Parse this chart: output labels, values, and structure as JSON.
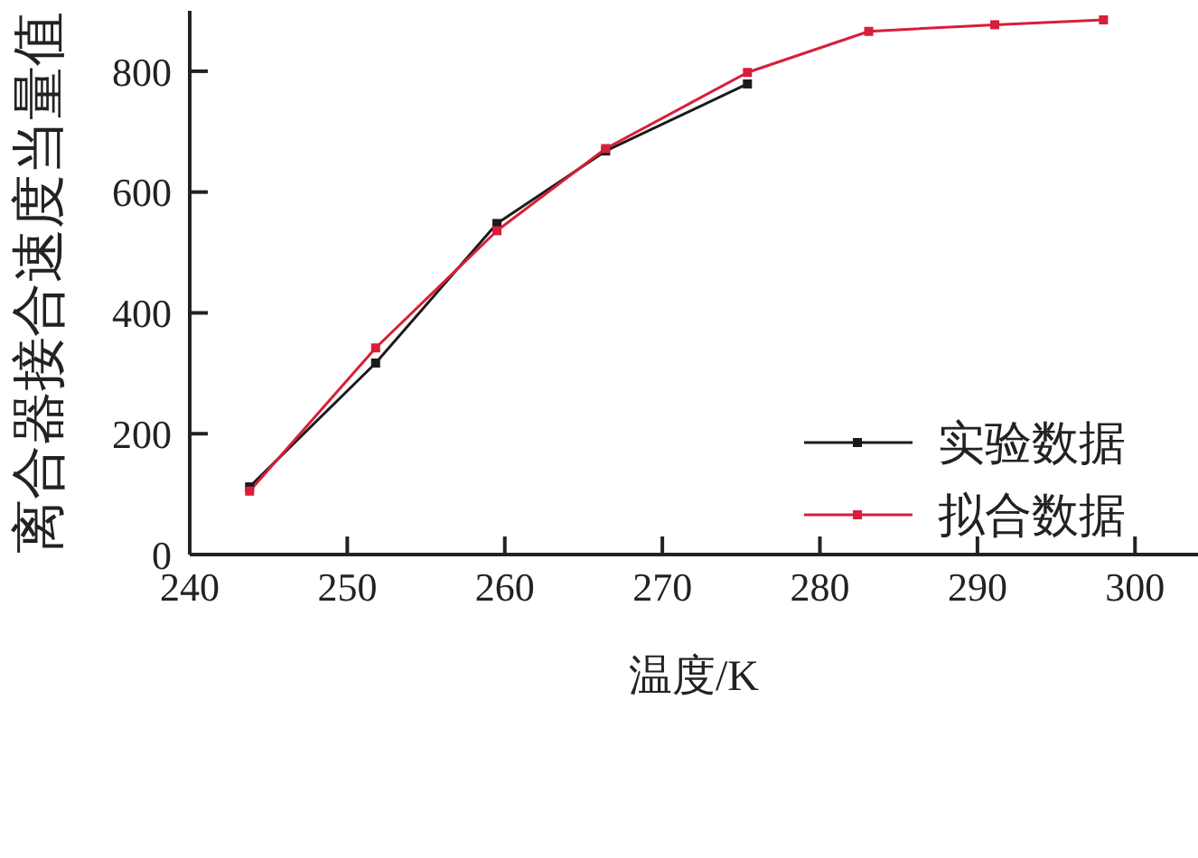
{
  "chart_data": {
    "type": "line",
    "xlabel": "温度/K",
    "ylabel": "离合器接合速度当量值",
    "x": [
      243.8,
      251.8,
      259.5,
      266.4,
      275.4,
      283.1,
      291.1,
      298
    ],
    "series": [
      {
        "name": "实验数据",
        "color": "#1a1a1a",
        "values": [
          112,
          317,
          548,
          668,
          779,
          null,
          null,
          null
        ]
      },
      {
        "name": "拟合数据",
        "color": "#d81e3a",
        "values": [
          105,
          342,
          536,
          672,
          798,
          866,
          877,
          885
        ]
      }
    ],
    "xlim": [
      240,
      304
    ],
    "xticks": [
      240,
      250,
      260,
      270,
      280,
      290,
      300
    ],
    "ylim": [
      0,
      900
    ],
    "yticks": [
      0,
      200,
      400,
      600,
      800
    ],
    "grid": false,
    "legend": "center right",
    "marker": "square",
    "line_style": "solid"
  }
}
